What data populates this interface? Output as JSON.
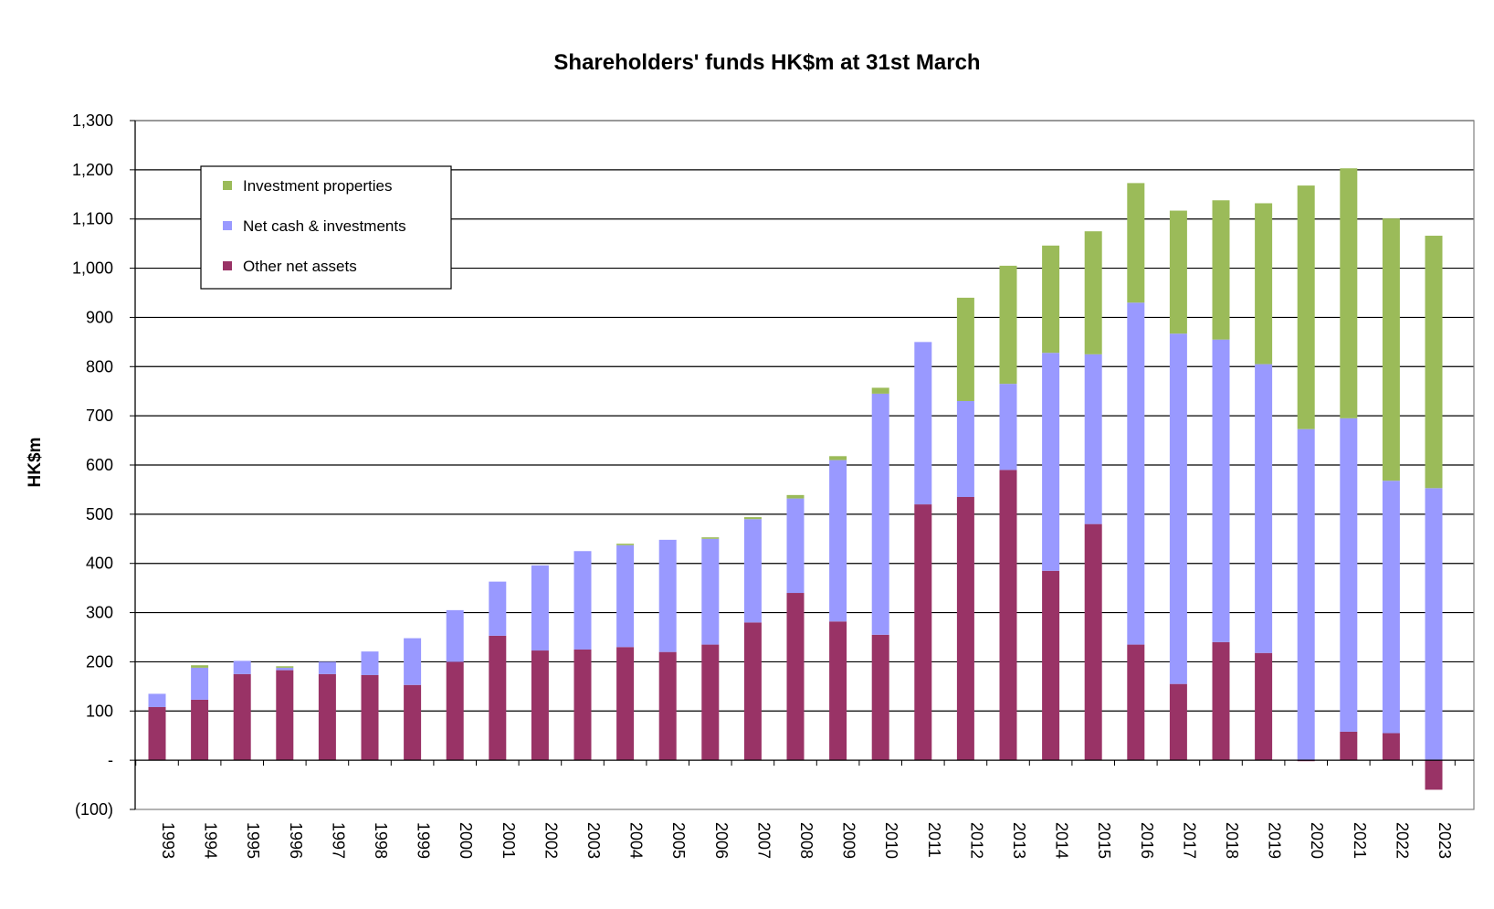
{
  "chart_data": {
    "type": "bar",
    "stacked": true,
    "title": "Shareholders' funds HK$m at 31st March",
    "xlabel": "",
    "ylabel": "HK$m",
    "ylim": [
      -100,
      1300
    ],
    "yticks": [
      -100,
      0,
      100,
      200,
      300,
      400,
      500,
      600,
      700,
      800,
      900,
      1000,
      1100,
      1200,
      1300
    ],
    "ytick_labels": [
      "(100)",
      "-",
      "100",
      "200",
      "300",
      "400",
      "500",
      "600",
      "700",
      "800",
      "900",
      "1,000",
      "1,100",
      "1,200",
      "1,300"
    ],
    "grid": true,
    "legend_position": "top-left",
    "categories": [
      "1993",
      "1994",
      "1995",
      "1996",
      "1997",
      "1998",
      "1999",
      "2000",
      "2001",
      "2002",
      "2003",
      "2004",
      "2005",
      "2006",
      "2007",
      "2008",
      "2009",
      "2010",
      "2011",
      "2012",
      "2013",
      "2014",
      "2015",
      "2016",
      "2017",
      "2018",
      "2019",
      "2020",
      "2021",
      "2022",
      "2023"
    ],
    "series": [
      {
        "name": "Other net assets",
        "color": "#993366",
        "values": [
          108,
          123,
          175,
          183,
          175,
          173,
          153,
          200,
          253,
          223,
          225,
          230,
          220,
          235,
          280,
          340,
          282,
          255,
          520,
          535,
          590,
          385,
          480,
          235,
          155,
          240,
          218,
          -2,
          58,
          55,
          -60
        ]
      },
      {
        "name": "Net cash & investments",
        "color": "#9999ff",
        "values": [
          27,
          65,
          27,
          5,
          25,
          48,
          95,
          105,
          110,
          173,
          200,
          207,
          228,
          215,
          210,
          192,
          328,
          490,
          330,
          195,
          175,
          443,
          345,
          695,
          712,
          615,
          587,
          673,
          637,
          513,
          553
        ]
      },
      {
        "name": "Investment properties",
        "color": "#9bbb59",
        "values": [
          0,
          5,
          0,
          3,
          0,
          0,
          0,
          0,
          0,
          0,
          0,
          3,
          0,
          3,
          4,
          7,
          8,
          12,
          0,
          210,
          240,
          218,
          250,
          243,
          250,
          283,
          327,
          495,
          508,
          533,
          513
        ]
      }
    ],
    "legend_order": [
      "Investment properties",
      "Net cash & investments",
      "Other net assets"
    ]
  }
}
